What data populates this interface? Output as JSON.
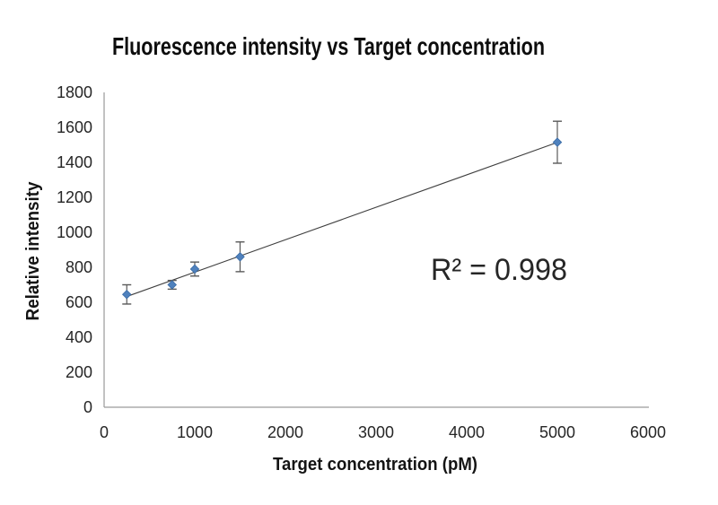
{
  "chart_data": {
    "type": "scatter",
    "title": "Fluorescence intensity vs Target concentration",
    "xlabel": "Target concentration (pM)",
    "ylabel": "Relative intensity",
    "annotation": "R² = 0.998",
    "x": [
      250,
      750,
      1000,
      1500,
      5000
    ],
    "y": [
      645,
      700,
      790,
      860,
      1515
    ],
    "y_err": [
      55,
      25,
      40,
      85,
      120
    ],
    "trendline": {
      "type": "linear",
      "x1": 250,
      "y1": 633,
      "x2": 5000,
      "y2": 1514
    },
    "xlim": [
      0,
      6000
    ],
    "ylim": [
      0,
      1800
    ],
    "xticks": [
      0,
      1000,
      2000,
      3000,
      4000,
      5000,
      6000
    ],
    "yticks": [
      0,
      200,
      400,
      600,
      800,
      1000,
      1200,
      1400,
      1600,
      1800
    ],
    "grid": false,
    "legend_position": "none",
    "colors": {
      "marker": "#4F81BD",
      "marker_edge": "#3A6BA5",
      "trendline": "#3F3F3F",
      "error_bar": "#595959",
      "axis_line": "#9A9A9A",
      "tick_text": "#262626",
      "title_text": "#0D0D0D",
      "background": "#FFFFFF"
    }
  }
}
